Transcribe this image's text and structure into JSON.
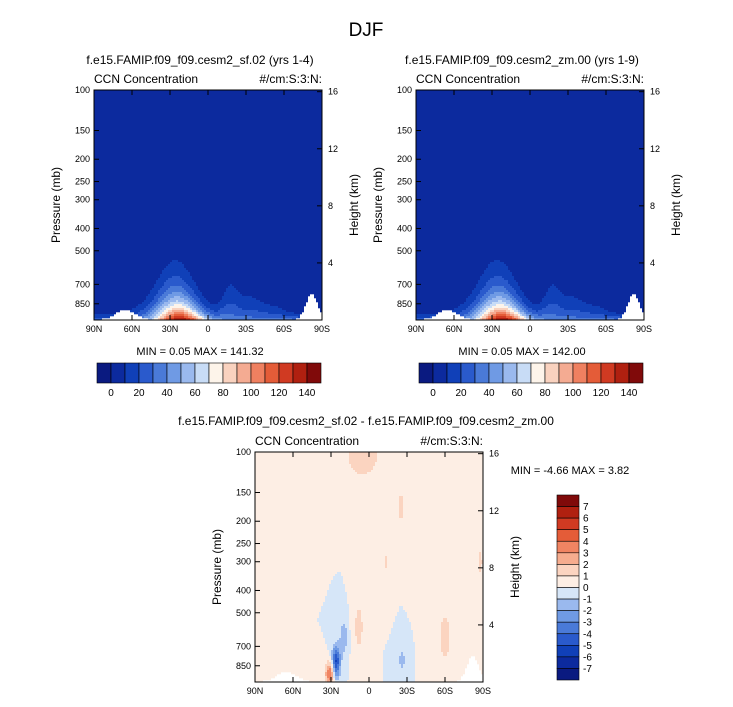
{
  "figure_title": "DJF",
  "colors": {
    "frame": "#000000",
    "abs_levels": [
      "#0a1a80",
      "#0c2a9e",
      "#1040b8",
      "#2a5acc",
      "#4a7ad8",
      "#6f9ae4",
      "#9ab9ee",
      "#c8dcf6",
      "#fdf4ea",
      "#f9d2bf",
      "#f4ab92",
      "#ef8060",
      "#e45c38",
      "#d03a22",
      "#b02010",
      "#800a0a"
    ],
    "diff_levels": [
      "#0a1a80",
      "#0c2a9e",
      "#1040b8",
      "#2a5acc",
      "#4a7ad8",
      "#6f9ae4",
      "#9ab9ee",
      "#d6e6f8",
      "#fdeee4",
      "#fbd4c0",
      "#f6ac8e",
      "#f08462",
      "#e45c38",
      "#d03a22",
      "#b02010",
      "#800a0a"
    ]
  },
  "chart_data": [
    {
      "type": "contour",
      "id": "panel1",
      "title": "f.e15.FAMIP.f09_f09.cesm2_sf.02 (yrs 1-4)",
      "left_label": "CCN Concentration",
      "right_label": "#/cm:S:3:N:",
      "ylabel": "Pressure (mb)",
      "ylabel_right": "Height (km)",
      "x_ticks": [
        "90N",
        "60N",
        "30N",
        "0",
        "30S",
        "60S",
        "90S"
      ],
      "xlim": [
        90,
        -90
      ],
      "y_ticks": [
        100,
        150,
        200,
        250,
        300,
        400,
        500,
        700,
        850
      ],
      "ylim": [
        100,
        1000
      ],
      "height_ticks": [
        16,
        12,
        8,
        4
      ],
      "min_max": "MIN =   0.05  MAX = 141.32",
      "field_max": 141.32
    },
    {
      "type": "contour",
      "id": "panel2",
      "title": "f.e15.FAMIP.f09_f09.cesm2_zm.00 (yrs 1-9)",
      "left_label": "CCN Concentration",
      "right_label": "#/cm:S:3:N:",
      "ylabel": "Pressure (mb)",
      "ylabel_right": "Height (km)",
      "x_ticks": [
        "90N",
        "60N",
        "30N",
        "0",
        "30S",
        "60S",
        "90S"
      ],
      "xlim": [
        90,
        -90
      ],
      "y_ticks": [
        100,
        150,
        200,
        250,
        300,
        400,
        500,
        700,
        850
      ],
      "ylim": [
        100,
        1000
      ],
      "height_ticks": [
        16,
        12,
        8,
        4
      ],
      "min_max": "MIN =   0.05  MAX = 142.00",
      "field_max": 142.0
    },
    {
      "type": "contour",
      "id": "panel3",
      "title": "f.e15.FAMIP.f09_f09.cesm2_sf.02 - f.e15.FAMIP.f09_f09.cesm2_zm.00",
      "left_label": "CCN Concentration",
      "right_label": "#/cm:S:3:N:",
      "ylabel": "Pressure (mb)",
      "ylabel_right": "Height (km)",
      "x_ticks": [
        "90N",
        "60N",
        "30N",
        "0",
        "30S",
        "60S",
        "90S"
      ],
      "xlim": [
        90,
        -90
      ],
      "y_ticks": [
        100,
        150,
        200,
        250,
        300,
        400,
        500,
        700,
        850
      ],
      "ylim": [
        100,
        1000
      ],
      "height_ticks": [
        16,
        12,
        8,
        4
      ],
      "min_max": "MIN =  -4.66  MAX =   3.82",
      "field_min": -4.66,
      "field_max": 3.82
    }
  ],
  "abs_colorbar": {
    "labels": [
      "0",
      "20",
      "40",
      "60",
      "80",
      "100",
      "120",
      "140"
    ]
  },
  "diff_colorbar": {
    "labels": [
      "7",
      "6",
      "5",
      "4",
      "3",
      "2",
      "1",
      "0",
      "-1",
      "-2",
      "-3",
      "-4",
      "-5",
      "-6",
      "-7"
    ]
  }
}
